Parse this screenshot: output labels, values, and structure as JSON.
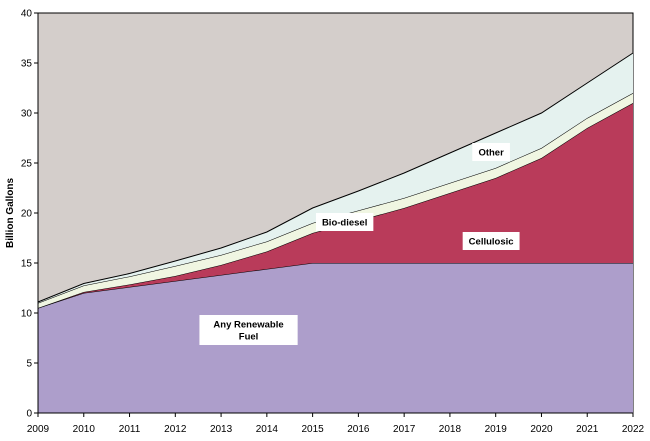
{
  "chart_data": {
    "type": "area",
    "stacked": true,
    "title": "",
    "xlabel": "",
    "ylabel": "Billion Gallons",
    "x": [
      2009,
      2010,
      2011,
      2012,
      2013,
      2014,
      2015,
      2016,
      2017,
      2018,
      2019,
      2020,
      2021,
      2022
    ],
    "xlim": [
      2009,
      2022
    ],
    "ylim": [
      0,
      40
    ],
    "yticks": [
      0,
      5,
      10,
      15,
      20,
      25,
      30,
      35,
      40
    ],
    "grid": false,
    "legend": "none",
    "background_color": "#d4cecb",
    "series": [
      {
        "name": "Any Renewable Fuel",
        "color": "#ad9ecb",
        "values": [
          10.5,
          12.0,
          12.6,
          13.2,
          13.8,
          14.4,
          15.0,
          15.0,
          15.0,
          15.0,
          15.0,
          15.0,
          15.0,
          15.0
        ]
      },
      {
        "name": "Cellulosic",
        "color": "#b93b5a",
        "values": [
          0,
          0.1,
          0.25,
          0.5,
          1.0,
          1.75,
          3.0,
          4.25,
          5.5,
          7.0,
          8.5,
          10.5,
          13.5,
          16.0
        ]
      },
      {
        "name": "Bio-diesel",
        "color": "#f0f6e2",
        "values": [
          0.5,
          0.65,
          0.8,
          1.0,
          1.0,
          1.0,
          1.0,
          1.0,
          1.0,
          1.0,
          1.0,
          1.0,
          1.0,
          1.0
        ]
      },
      {
        "name": "Other",
        "color": "#e5f2ef",
        "values": [
          0.1,
          0.2,
          0.3,
          0.5,
          0.7,
          0.95,
          1.5,
          1.95,
          2.5,
          3.0,
          3.5,
          3.5,
          3.5,
          4.0
        ]
      }
    ],
    "annotations": [
      {
        "text": "Any Renewable Fuel",
        "lines": [
          "Any Renewable",
          "Fuel"
        ],
        "series": "Any Renewable Fuel",
        "x": 2013.6,
        "y": 8.3
      },
      {
        "text": "Cellulosic",
        "lines": [
          "Cellulosic"
        ],
        "series": "Cellulosic",
        "x": 2018.9,
        "y": 17.2
      },
      {
        "text": "Bio-diesel",
        "lines": [
          "Bio-diesel"
        ],
        "series": "Bio-diesel",
        "x": 2015.7,
        "y": 19.1
      },
      {
        "text": "Other",
        "lines": [
          "Other"
        ],
        "series": "Other",
        "x": 2018.9,
        "y": 26.1
      }
    ]
  }
}
